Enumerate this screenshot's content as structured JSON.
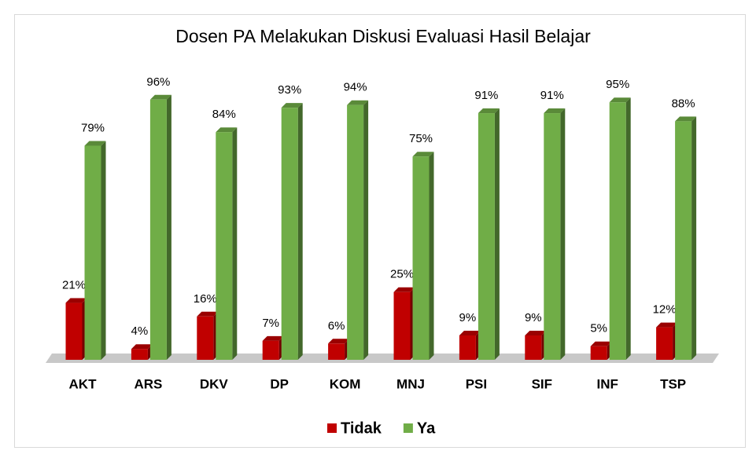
{
  "chart_data": {
    "type": "bar",
    "title": "Dosen PA Melakukan Diskusi Evaluasi Hasil Belajar",
    "categories": [
      "AKT",
      "ARS",
      "DKV",
      "DP",
      "KOM",
      "MNJ",
      "PSI",
      "SIF",
      "INF",
      "TSP"
    ],
    "series": [
      {
        "name": "Tidak",
        "color": "#c00000",
        "values": [
          21,
          4,
          16,
          7,
          6,
          25,
          9,
          9,
          5,
          12
        ],
        "value_labels": [
          "21%",
          "4%",
          "16%",
          "7%",
          "6%",
          "25%",
          "9%",
          "9%",
          "5%",
          "12%"
        ]
      },
      {
        "name": "Ya",
        "color": "#70ad47",
        "values": [
          79,
          96,
          84,
          93,
          94,
          75,
          91,
          91,
          95,
          88
        ],
        "value_labels": [
          "79%",
          "96%",
          "84%",
          "93%",
          "94%",
          "75%",
          "91%",
          "91%",
          "95%",
          "88%"
        ]
      }
    ],
    "legend": "bottom"
  }
}
